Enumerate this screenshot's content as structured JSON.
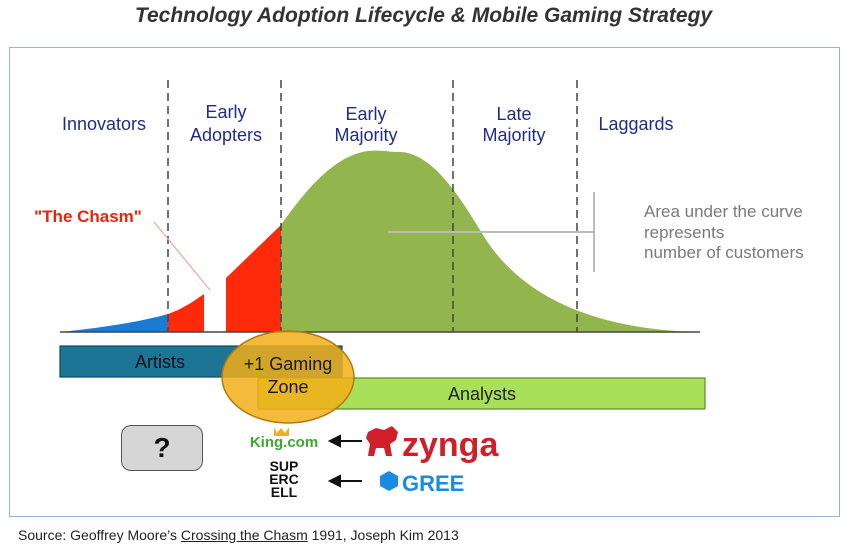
{
  "title": "Technology Adoption Lifecycle & Mobile Gaming Strategy",
  "segments": [
    {
      "line1": "Innovators",
      "line2": ""
    },
    {
      "line1": "Early",
      "line2": "Adopters"
    },
    {
      "line1": "Early",
      "line2": "Majority"
    },
    {
      "line1": "Late",
      "line2": "Majority"
    },
    {
      "line1": "Laggards",
      "line2": ""
    }
  ],
  "chasm_label": "\"The Chasm\"",
  "annotation": {
    "line1": "Area under the curve",
    "line2": "represents",
    "line3": "number of customers"
  },
  "bars": {
    "artists": "Artists",
    "analysts": "Analysts"
  },
  "zone": {
    "line1": "+1 Gaming",
    "line2": "Zone"
  },
  "question_box": "?",
  "logos": {
    "king": "King.com",
    "zynga": "zynga",
    "supercell": [
      "SUP",
      "ERC",
      "ELL"
    ],
    "gree": "GREE"
  },
  "source": {
    "prefix": "Source: Geoffrey Moore’s ",
    "book": "Crossing the Chasm",
    "suffix": " 1991, Joseph Kim 2013"
  },
  "colors": {
    "green": "#92b54e",
    "red": "#ff2a0a",
    "blue": "#1b7bd0",
    "artists_bar": "#1d7596",
    "analysts_bar": "#a8e05a",
    "zone": "#f2ae18",
    "segment_text": "#1f2d8a",
    "zynga_red": "#cf1f29",
    "gree_blue": "#1a8be0"
  }
}
